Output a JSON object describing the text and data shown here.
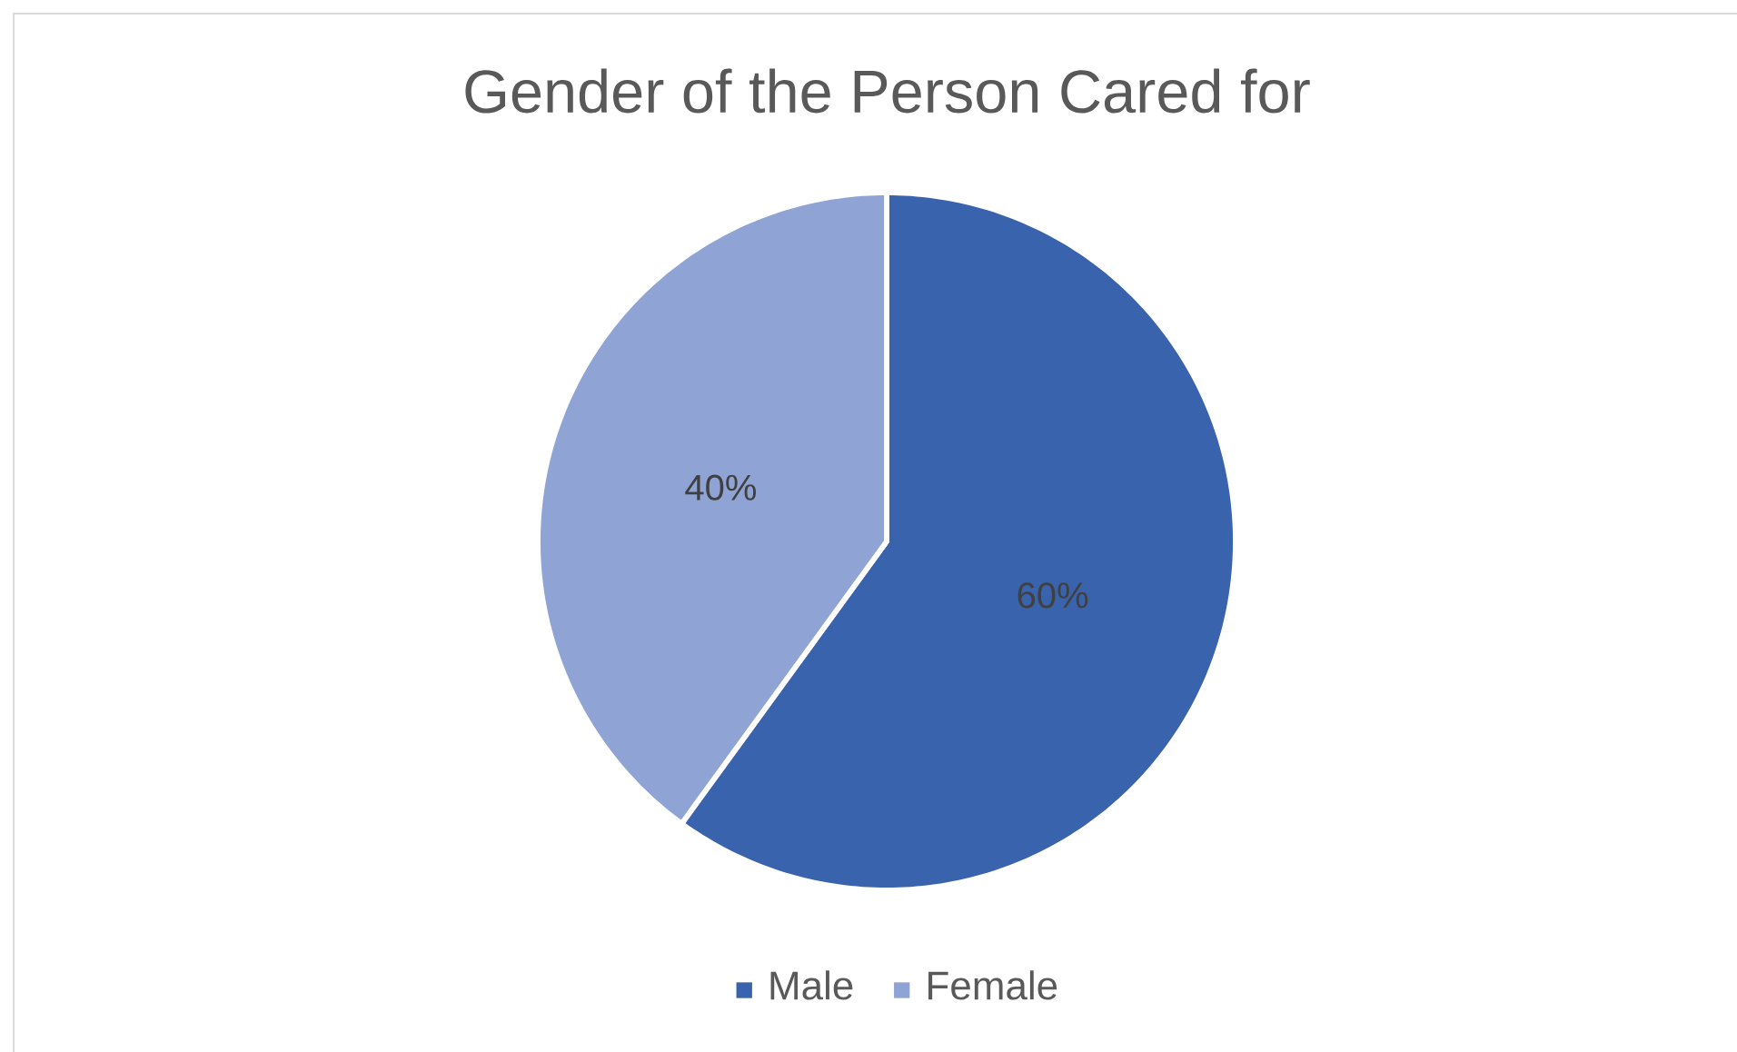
{
  "chart_data": {
    "type": "pie",
    "title": "Gender of the Person Cared for",
    "categories": [
      "Male",
      "Female"
    ],
    "values": [
      60,
      40
    ],
    "colors": [
      "#3a63ad",
      "#8fa3d4"
    ],
    "value_labels": [
      "60%",
      "40%"
    ],
    "legend": "bottom"
  }
}
